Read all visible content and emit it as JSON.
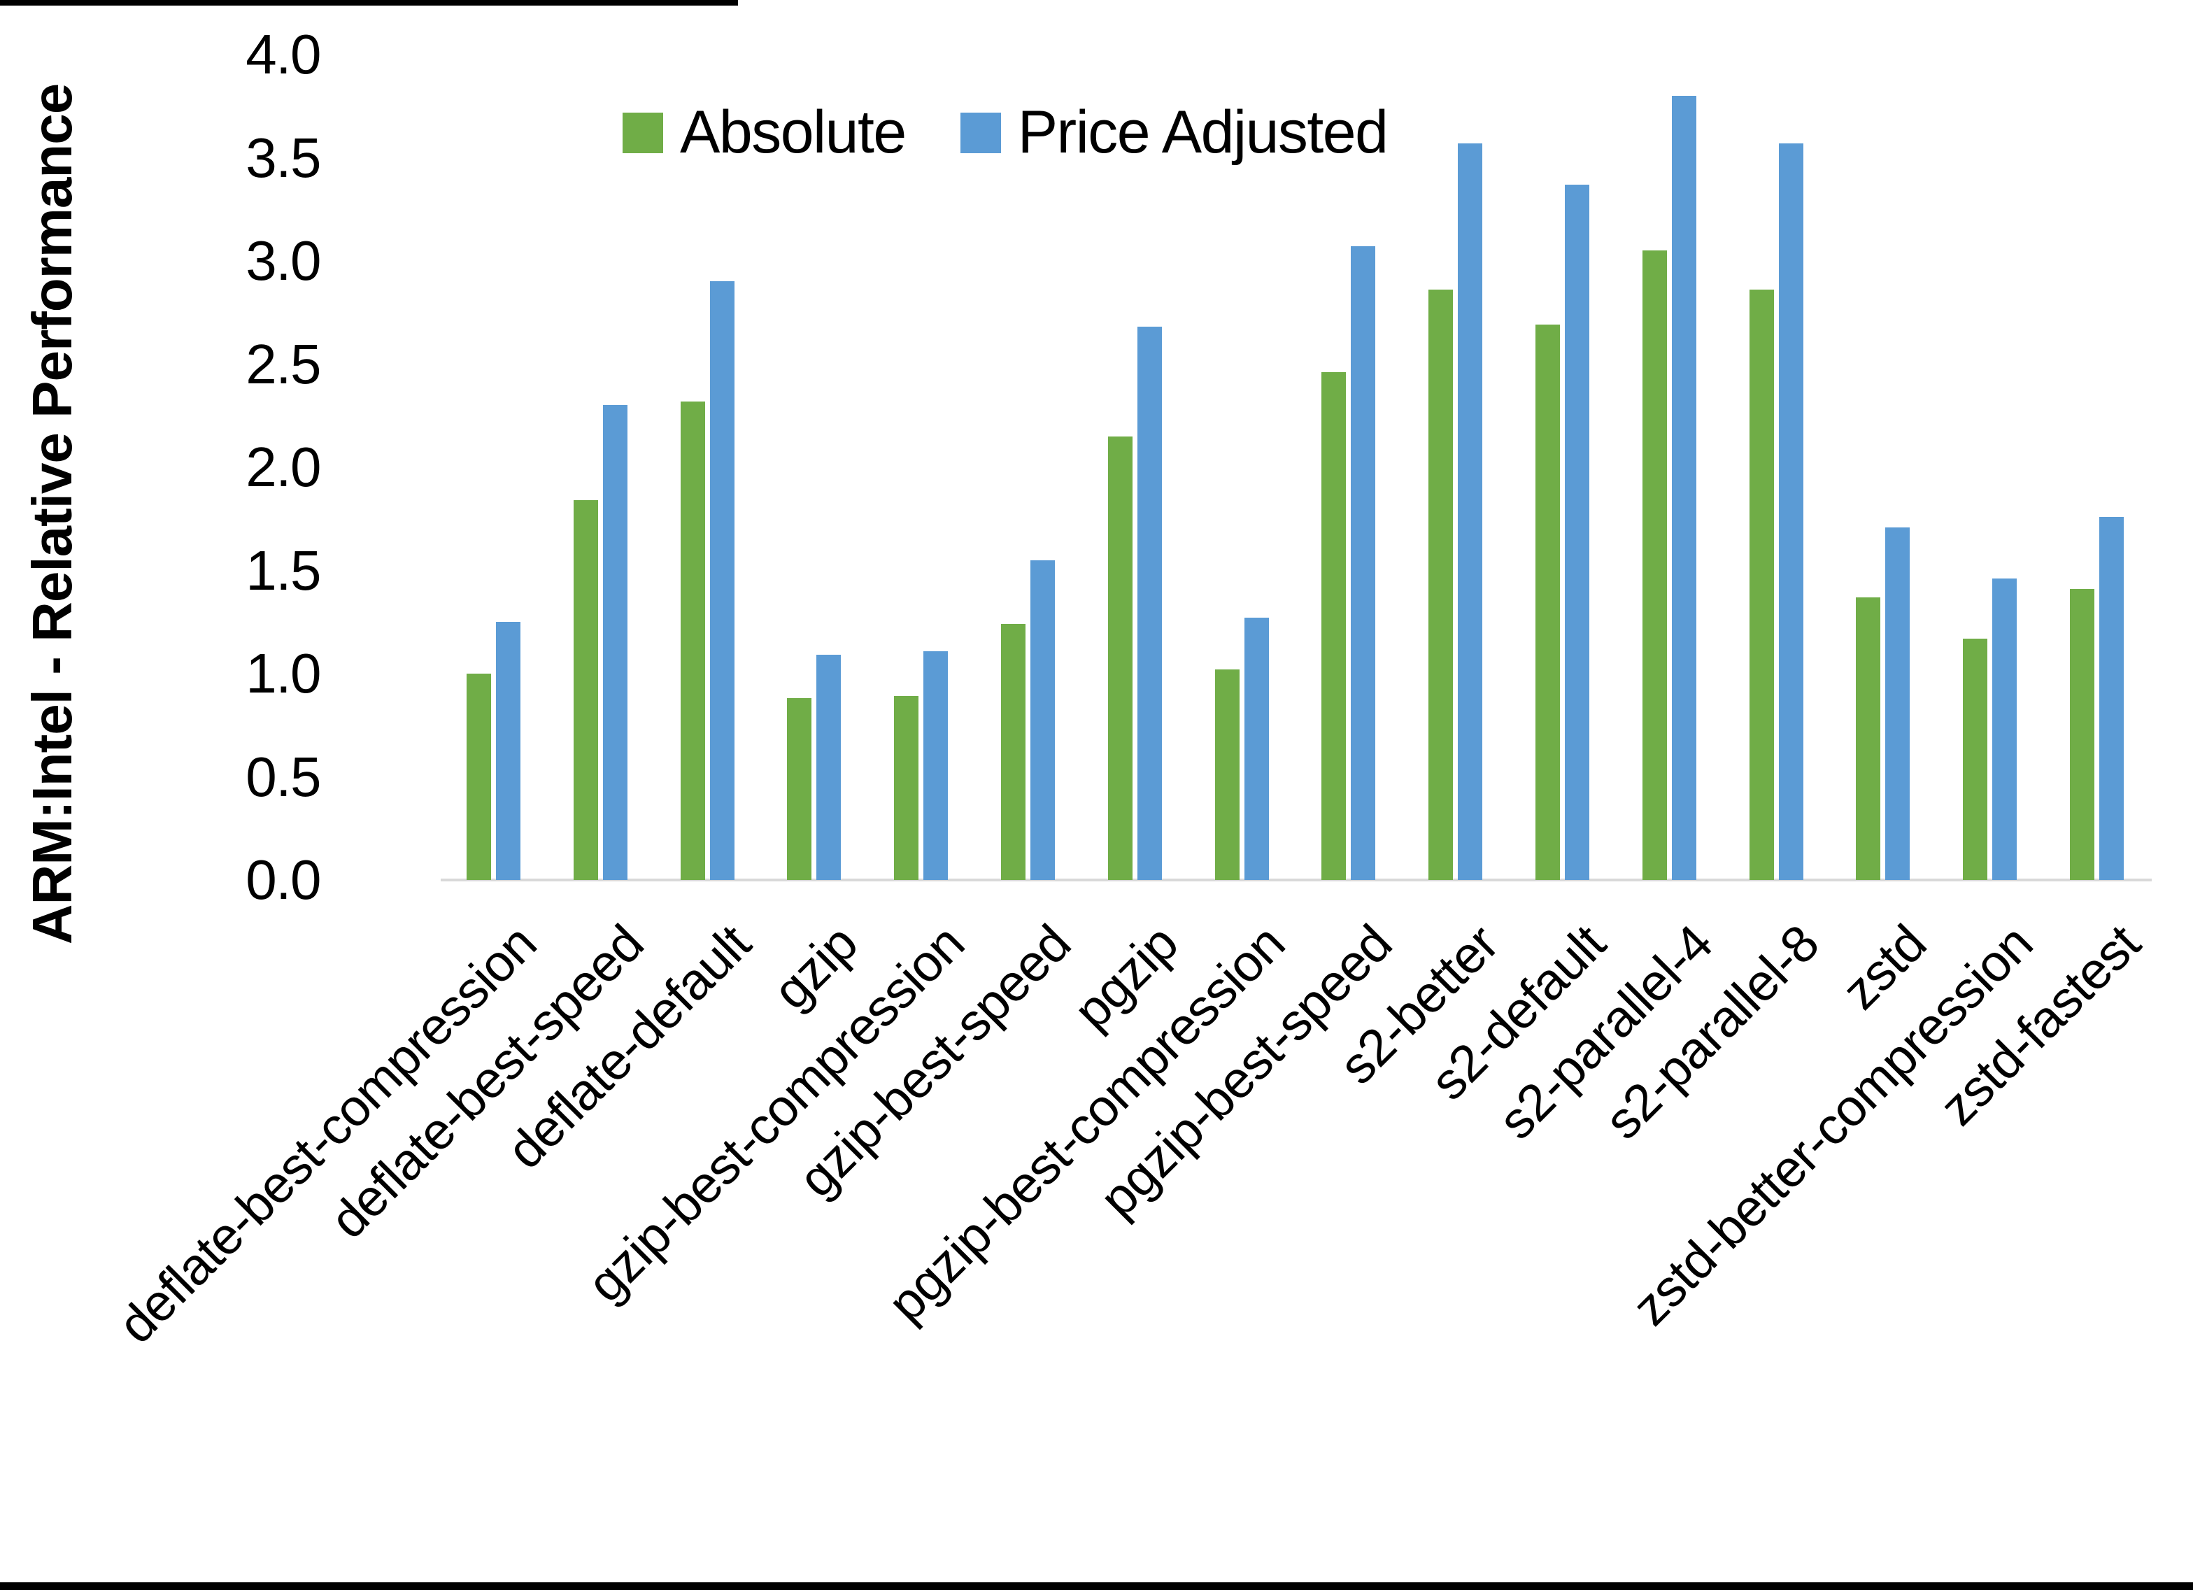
{
  "figure": {
    "ylabel": "ARM:Intel - Relative Performance"
  },
  "chart_data": {
    "type": "bar",
    "title": "",
    "xlabel": "",
    "ylabel": "ARM:Intel - Relative Performance",
    "ylim": [
      0.0,
      4.0
    ],
    "ytick_step": 0.5,
    "yticks": [
      "0.0",
      "0.5",
      "1.0",
      "1.5",
      "2.0",
      "2.5",
      "3.0",
      "3.5",
      "4.0"
    ],
    "grid": false,
    "legend_position": "top-center",
    "categories": [
      "deflate-best-compression",
      "deflate-best-speed",
      "deflate-default",
      "gzip",
      "gzip-best-compression",
      "gzip-best-speed",
      "pgzip",
      "pgzip-best-compression",
      "pgzip-best-speed",
      "s2-better",
      "s2-default",
      "s2-parallel-4",
      "s2-parallel-8",
      "zstd",
      "zstd-better-compression",
      "zstd-fastest"
    ],
    "series": [
      {
        "name": "Absolute",
        "color": "#70AD47",
        "values": [
          1.0,
          1.84,
          2.32,
          0.88,
          0.89,
          1.24,
          2.15,
          1.02,
          2.46,
          2.86,
          2.69,
          3.05,
          2.86,
          1.37,
          1.17,
          1.41
        ]
      },
      {
        "name": "Price Adjusted",
        "color": "#5B9BD5",
        "values": [
          1.25,
          2.3,
          2.9,
          1.09,
          1.11,
          1.55,
          2.68,
          1.27,
          3.07,
          3.57,
          3.37,
          3.8,
          3.57,
          1.71,
          1.46,
          1.76
        ]
      }
    ],
    "colors": {
      "axis_line": "#d9d9d9",
      "text": "#000000",
      "background": "#ffffff"
    }
  }
}
